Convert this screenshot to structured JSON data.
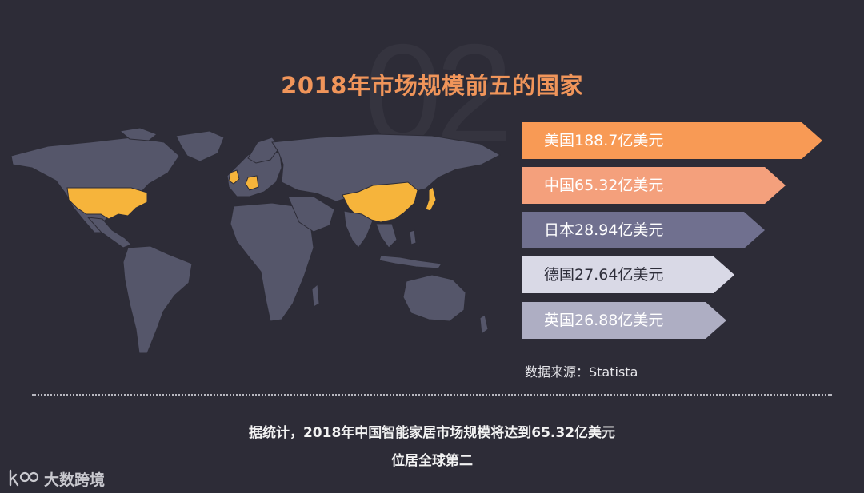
{
  "background_number": "02",
  "title": "2018年市场规模前五的国家",
  "colors": {
    "background": "#2d2c37",
    "title": "#f0955a",
    "map_land": "#55566a",
    "map_highlight": "#f6b43b"
  },
  "ranking": [
    {
      "label": "美国188.7亿美元",
      "value": 188.7,
      "color": "#f89a55",
      "text_color": "#ffffff"
    },
    {
      "label": "中国65.32亿美元",
      "value": 65.32,
      "color": "#f4a07c",
      "text_color": "#ffffff"
    },
    {
      "label": "日本28.94亿美元",
      "value": 28.94,
      "color": "#70708f",
      "text_color": "#ffffff"
    },
    {
      "label": "德国27.64亿美元",
      "value": 27.64,
      "color": "#d9d9e6",
      "text_color": "#2e2e3a"
    },
    {
      "label": "英国26.88亿美元",
      "value": 26.88,
      "color": "#aeaec3",
      "text_color": "#ffffff"
    }
  ],
  "source": "数据来源：Statista",
  "summary": {
    "line1": "据统计，2018年中国智能家居市场规模将达到65.32亿美元",
    "line2": "位居全球第二"
  },
  "logo": {
    "mark": "ko",
    "text": "大数跨境"
  }
}
